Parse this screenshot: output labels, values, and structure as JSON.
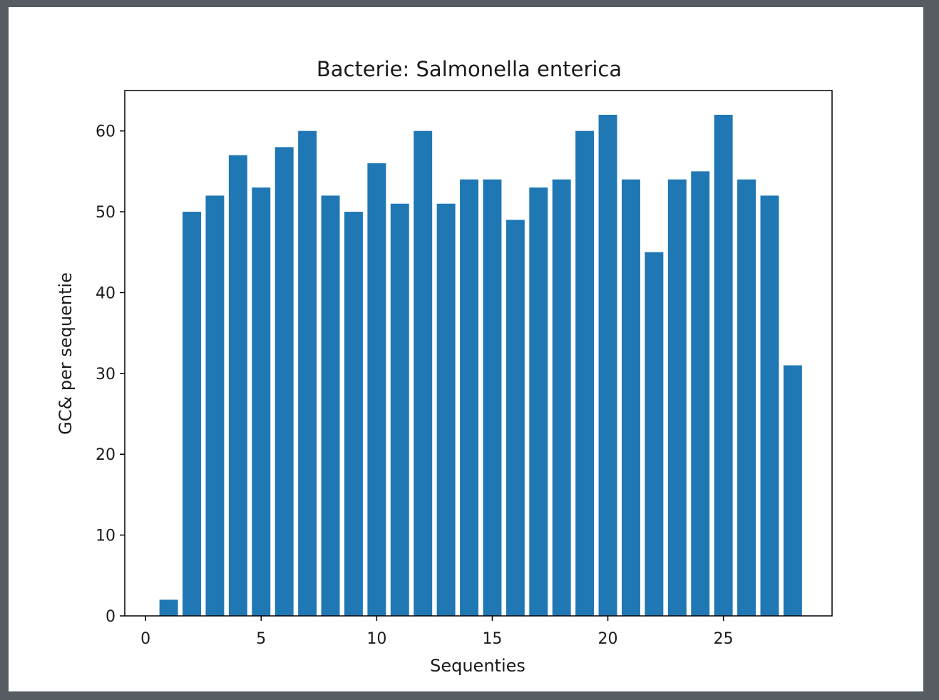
{
  "chart_data": {
    "type": "bar",
    "title": "Bacterie: Salmonella enterica",
    "xlabel": "Sequenties",
    "ylabel": "GC& per sequentie",
    "x": [
      0,
      1,
      2,
      3,
      4,
      5,
      6,
      7,
      8,
      9,
      10,
      11,
      12,
      13,
      14,
      15,
      16,
      17,
      18,
      19,
      20,
      21,
      22,
      23,
      24,
      25,
      26,
      27,
      28
    ],
    "values": [
      0,
      2,
      50,
      52,
      57,
      53,
      58,
      60,
      52,
      50,
      56,
      51,
      60,
      51,
      54,
      54,
      49,
      53,
      54,
      60,
      62,
      54,
      45,
      54,
      55,
      62,
      54,
      52,
      31
    ],
    "xlim": [
      -0.9,
      29.7
    ],
    "ylim": [
      0,
      65
    ],
    "xticks": [
      0,
      5,
      10,
      15,
      20,
      25
    ],
    "yticks": [
      0,
      10,
      20,
      30,
      40,
      50,
      60
    ],
    "bar_color": "#1f77b4",
    "grid": false,
    "legend": "none"
  }
}
